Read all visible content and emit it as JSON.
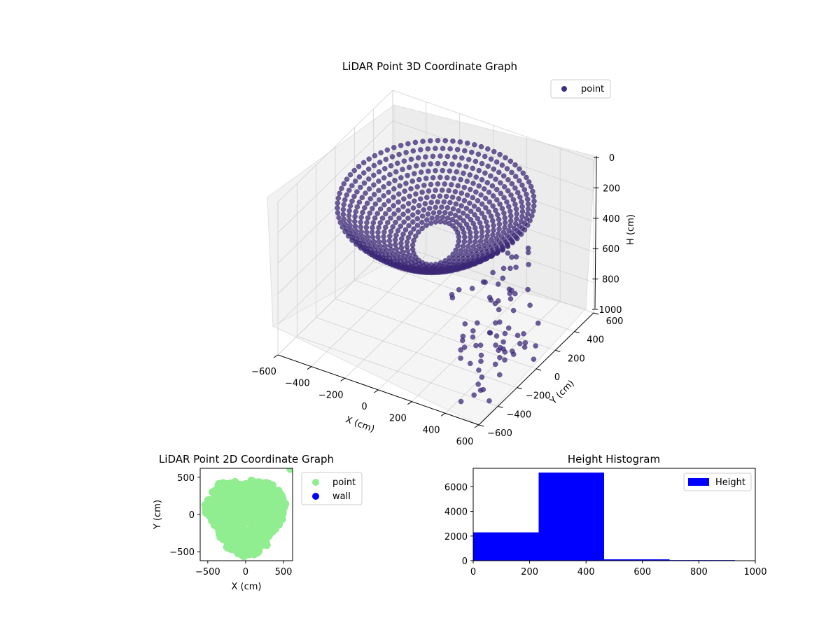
{
  "chart_data": [
    {
      "type": "scatter",
      "projection": "3d",
      "title": "LiDAR Point 3D Coordinate Graph",
      "xlabel": "X (cm)",
      "ylabel": "Y (cm)",
      "zlabel": "H (cm)",
      "xlim": [
        -600,
        600
      ],
      "ylim": [
        -600,
        600
      ],
      "zlim": [
        0,
        1000
      ],
      "z_inverted": true,
      "xticks": [
        "−600",
        "−400",
        "−200",
        "0",
        "200",
        "400",
        "600"
      ],
      "yticks": [
        "−600",
        "−400",
        "−200",
        "0",
        "200",
        "400",
        "600"
      ],
      "zticks": [
        "0",
        "200",
        "400",
        "600",
        "800",
        "1000"
      ],
      "grid": true,
      "legend": {
        "position": "top-right",
        "entries": [
          {
            "label": "point",
            "color": "#3b2f80"
          }
        ]
      },
      "series": [
        {
          "name": "point",
          "color": "#3e2a7a",
          "description_shape": "dome-shaped shell of points, radius about 500, heights roughly 0 to 600, with outliers at larger radius",
          "sample_points": [
            {
              "x": -500,
              "y": 0,
              "h": 300
            },
            {
              "x": 0,
              "y": 500,
              "h": 300
            },
            {
              "x": 500,
              "y": 0,
              "h": 330
            },
            {
              "x": 0,
              "y": -500,
              "h": 320
            },
            {
              "x": -350,
              "y": 350,
              "h": 120
            },
            {
              "x": 350,
              "y": 350,
              "h": 150
            },
            {
              "x": 350,
              "y": -350,
              "h": 400
            },
            {
              "x": -350,
              "y": -350,
              "h": 380
            },
            {
              "x": 0,
              "y": 0,
              "h": 560
            },
            {
              "x": 550,
              "y": -450,
              "h": 900
            },
            {
              "x": 600,
              "y": -600,
              "h": 1000
            },
            {
              "x": 580,
              "y": 200,
              "h": 250
            }
          ]
        }
      ]
    },
    {
      "type": "scatter",
      "title": "LiDAR Point 2D Coordinate Graph",
      "xlabel": "X (cm)",
      "ylabel": "Y (cm)",
      "xlim": [
        -600,
        620
      ],
      "ylim": [
        -620,
        620
      ],
      "xticks": [
        "−500",
        "0",
        "500"
      ],
      "yticks": [
        "−500",
        "0",
        "500"
      ],
      "grid": false,
      "legend": {
        "position": "outside-right",
        "entries": [
          {
            "label": "point",
            "color": "#90ee90"
          },
          {
            "label": "wall",
            "color": "#0000ff"
          }
        ]
      },
      "series": [
        {
          "name": "point",
          "color": "#90ee90",
          "shape": "filled roughly circular blob of radius about 520 centered near the origin"
        },
        {
          "name": "wall",
          "color": "#0000ff",
          "points": []
        }
      ]
    },
    {
      "type": "bar",
      "title": "Height Histogram",
      "xlim": [
        0,
        1000
      ],
      "ylim": [
        0,
        7500
      ],
      "xticks": [
        "0",
        "200",
        "400",
        "600",
        "800",
        "1000"
      ],
      "yticks": [
        "0",
        "2000",
        "4000",
        "6000"
      ],
      "legend": {
        "position": "top-right",
        "entries": [
          {
            "label": "Height",
            "color": "#0000ff"
          }
        ]
      },
      "bins": [
        {
          "start": 0,
          "end": 232,
          "count": 2300
        },
        {
          "start": 232,
          "end": 464,
          "count": 7150
        },
        {
          "start": 464,
          "end": 696,
          "count": 110
        },
        {
          "start": 696,
          "end": 928,
          "count": 50
        }
      ],
      "color": "#0000ff"
    }
  ]
}
